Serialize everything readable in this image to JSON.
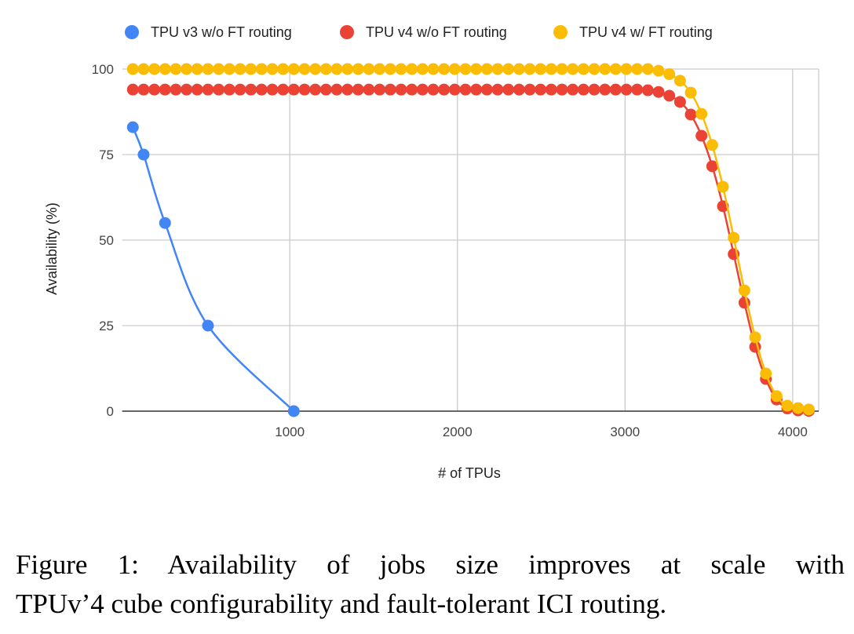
{
  "chart_data": {
    "type": "line",
    "title": "",
    "xlabel": "# of TPUs",
    "ylabel": "Availability (%)",
    "xlim": [
      0,
      4155
    ],
    "ylim": [
      0,
      100
    ],
    "xticks": [
      "1000",
      "2000",
      "3000",
      "4000"
    ],
    "yticks": [
      "0",
      "25",
      "50",
      "75",
      "100"
    ],
    "grid": true,
    "legend_position": "top",
    "series": [
      {
        "name": "TPU v3 w/o FT routing",
        "color": "#4285F4",
        "x": [
          64,
          128,
          256,
          512,
          1024
        ],
        "values": [
          83,
          75,
          55,
          25,
          0
        ]
      },
      {
        "name": "TPU v4 w/o FT routing",
        "color": "#EA4335",
        "x_start": 64,
        "x_step": 64,
        "values": [
          94,
          94,
          94,
          94,
          94,
          94,
          94,
          94,
          94,
          94,
          94,
          94,
          94,
          94,
          94,
          94,
          94,
          94,
          94,
          94,
          94,
          94,
          94,
          94,
          94,
          94,
          94,
          94,
          94,
          94,
          94,
          94,
          94,
          94,
          94,
          94,
          94,
          94,
          94,
          94,
          94,
          94,
          94,
          94,
          94,
          94,
          94,
          94,
          93.8,
          93.3,
          92.2,
          90.4,
          86.7,
          80.5,
          71.6,
          59.9,
          45.9,
          31.7,
          18.8,
          9.4,
          3.4,
          0.8,
          0.2,
          0.1
        ]
      },
      {
        "name": "TPU v4 w/ FT routing",
        "color": "#FBBC04",
        "x_start": 64,
        "x_step": 64,
        "values": [
          100,
          100,
          100,
          100,
          100,
          100,
          100,
          100,
          100,
          100,
          100,
          100,
          100,
          100,
          100,
          100,
          100,
          100,
          100,
          100,
          100,
          100,
          100,
          100,
          100,
          100,
          100,
          100,
          100,
          100,
          100,
          100,
          100,
          100,
          100,
          100,
          100,
          100,
          100,
          100,
          100,
          100,
          100,
          100,
          100,
          100,
          100,
          100,
          100,
          99.5,
          98.5,
          96.6,
          93.1,
          86.9,
          77.8,
          65.6,
          50.7,
          35.3,
          21.6,
          11,
          4.4,
          1.6,
          0.9,
          0.5
        ]
      }
    ]
  },
  "caption": {
    "line1": "Figure 1: Availability of jobs size improves at scale with",
    "line2": "TPUv’4 cube configurability and fault-tolerant ICI routing."
  }
}
